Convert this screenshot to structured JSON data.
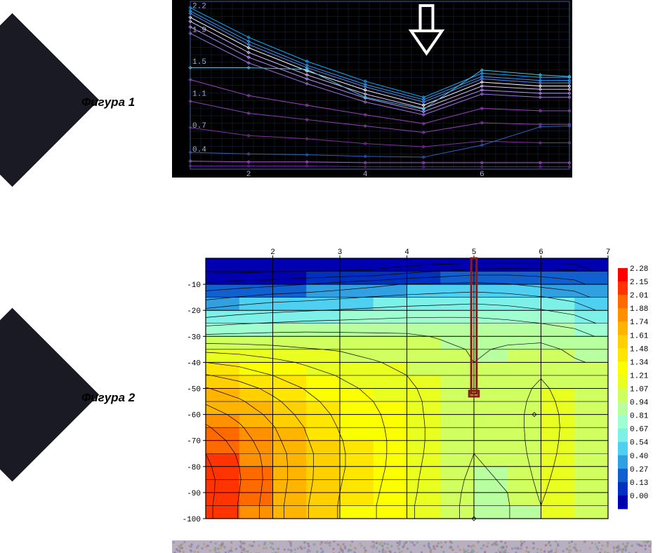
{
  "labels": {
    "fig1": "Фигура 1",
    "fig2": "Фигура 2"
  },
  "fig1": {
    "type": "line",
    "background": "#000000",
    "grid_color": "#1a2a4a",
    "axis_color": "#4060a0",
    "text_color": "#a0b0d0",
    "xlim": [
      1,
      7.5
    ],
    "ylim": [
      0.2,
      2.3
    ],
    "xticks": [
      2,
      4,
      6
    ],
    "yticks": [
      0.4,
      0.7,
      1.1,
      1.5,
      1.9,
      2.2
    ],
    "x_vals": [
      1,
      2,
      3,
      4,
      5,
      6,
      7,
      7.5
    ],
    "series": [
      {
        "color": "#00b0ff",
        "vals": [
          2.22,
          1.85,
          1.55,
          1.3,
          1.1,
          1.4,
          1.35,
          1.35
        ]
      },
      {
        "color": "#30a0ff",
        "vals": [
          2.18,
          1.8,
          1.5,
          1.26,
          1.07,
          1.36,
          1.31,
          1.31
        ]
      },
      {
        "color": "#5090ff",
        "vals": [
          2.15,
          1.76,
          1.47,
          1.23,
          1.04,
          1.33,
          1.28,
          1.28
        ]
      },
      {
        "color": "#ffffff",
        "vals": [
          2.1,
          1.72,
          1.43,
          1.19,
          1.0,
          1.29,
          1.24,
          1.24
        ]
      },
      {
        "color": "#e0c0ff",
        "vals": [
          2.05,
          1.66,
          1.38,
          1.14,
          0.96,
          1.24,
          1.2,
          1.2
        ]
      },
      {
        "color": "#c090ff",
        "vals": [
          1.98,
          1.6,
          1.33,
          1.09,
          0.92,
          1.19,
          1.15,
          1.15
        ]
      },
      {
        "color": "#a070e0",
        "vals": [
          1.9,
          1.53,
          1.27,
          1.04,
          0.88,
          1.14,
          1.1,
          1.1
        ]
      },
      {
        "color": "#50c0e0",
        "vals": [
          1.47,
          1.47,
          1.45,
          1.1,
          0.95,
          1.44,
          1.38,
          1.36
        ]
      },
      {
        "color": "#a040c0",
        "vals": [
          1.32,
          1.12,
          1.0,
          0.88,
          0.77,
          0.96,
          0.93,
          0.93
        ]
      },
      {
        "color": "#9040b0",
        "vals": [
          1.05,
          0.9,
          0.82,
          0.74,
          0.66,
          0.78,
          0.76,
          0.76
        ]
      },
      {
        "color": "#8030a0",
        "vals": [
          0.72,
          0.62,
          0.58,
          0.52,
          0.48,
          0.55,
          0.53,
          0.53
        ]
      },
      {
        "color": "#3060c0",
        "vals": [
          0.41,
          0.39,
          0.38,
          0.36,
          0.35,
          0.5,
          0.73,
          0.74
        ]
      },
      {
        "color": "#b050d0",
        "vals": [
          0.3,
          0.29,
          0.29,
          0.28,
          0.28,
          0.28,
          0.28,
          0.28
        ]
      },
      {
        "color": "#7020a0",
        "vals": [
          0.24,
          0.24,
          0.24,
          0.23,
          0.23,
          0.23,
          0.23,
          0.23
        ]
      }
    ],
    "arrow": {
      "x": 5.05,
      "color": "#ffffff"
    }
  },
  "fig2": {
    "type": "heatmap",
    "background": "#ffffff",
    "grid_color": "#000000",
    "text_color": "#000000",
    "xlim": [
      1,
      7
    ],
    "ylim": [
      -100,
      0
    ],
    "xticks": [
      2,
      3,
      4,
      5,
      6,
      7
    ],
    "yticks": [
      -10,
      -20,
      -30,
      -40,
      -50,
      -60,
      -70,
      -80,
      -90,
      -100
    ],
    "inner_hlines": [
      -5,
      -15,
      -25,
      -35,
      -45,
      -55,
      -65,
      -75,
      -85,
      -95
    ],
    "legend_title_hidden": true,
    "legend": [
      {
        "v": "2.28",
        "c": "#ff0000"
      },
      {
        "v": "2.15",
        "c": "#ff3400"
      },
      {
        "v": "2.01",
        "c": "#ff6a00"
      },
      {
        "v": "1.88",
        "c": "#ff9000"
      },
      {
        "v": "1.74",
        "c": "#ffb400"
      },
      {
        "v": "1.61",
        "c": "#ffd000"
      },
      {
        "v": "1.48",
        "c": "#ffe600"
      },
      {
        "v": "1.34",
        "c": "#fbff00"
      },
      {
        "v": "1.21",
        "c": "#e8ff20"
      },
      {
        "v": "1.07",
        "c": "#d0ff60"
      },
      {
        "v": "0.94",
        "c": "#b8ffa0"
      },
      {
        "v": "0.81",
        "c": "#a0ffd0"
      },
      {
        "v": "0.67",
        "c": "#7df0e8"
      },
      {
        "v": "0.54",
        "c": "#50d0f0"
      },
      {
        "v": "0.40",
        "c": "#30a0e0"
      },
      {
        "v": "0.27",
        "c": "#1060d0"
      },
      {
        "v": "0.13",
        "c": "#0030c0"
      },
      {
        "v": "0.00",
        "c": "#0000b0"
      }
    ],
    "cell_cols": [
      1,
      1.5,
      2,
      2.5,
      3,
      3.5,
      4,
      4.5,
      5,
      5.5,
      6,
      6.5,
      7
    ],
    "cell_rows": [
      0,
      -5,
      -10,
      -15,
      -20,
      -25,
      -30,
      -35,
      -40,
      -45,
      -50,
      -55,
      -60,
      -65,
      -70,
      -75,
      -80,
      -85,
      -90,
      -95,
      -100
    ],
    "cell_values": [
      [
        0.0,
        0.0,
        0.0,
        0.0,
        0.0,
        0.0,
        0.0,
        0.0,
        0.0,
        0.0,
        0.0,
        0.0
      ],
      [
        0.1,
        0.1,
        0.12,
        0.13,
        0.14,
        0.15,
        0.22,
        0.28,
        0.33,
        0.34,
        0.33,
        0.3
      ],
      [
        0.3,
        0.33,
        0.36,
        0.4,
        0.45,
        0.5,
        0.55,
        0.56,
        0.57,
        0.55,
        0.5,
        0.45
      ],
      [
        0.5,
        0.55,
        0.6,
        0.62,
        0.65,
        0.68,
        0.7,
        0.72,
        0.74,
        0.72,
        0.68,
        0.62
      ],
      [
        0.7,
        0.75,
        0.78,
        0.8,
        0.82,
        0.84,
        0.86,
        0.87,
        0.88,
        0.86,
        0.82,
        0.76
      ],
      [
        0.9,
        0.93,
        0.95,
        0.97,
        0.98,
        0.99,
        1.0,
        1.0,
        0.99,
        0.97,
        0.94,
        0.9
      ],
      [
        1.1,
        1.11,
        1.12,
        1.12,
        1.11,
        1.1,
        1.09,
        1.06,
        1.04,
        1.05,
        1.04,
        1.0
      ],
      [
        1.3,
        1.28,
        1.25,
        1.22,
        1.2,
        1.17,
        1.14,
        1.1,
        1.06,
        1.08,
        1.1,
        1.05
      ],
      [
        1.48,
        1.44,
        1.38,
        1.32,
        1.27,
        1.22,
        1.18,
        1.12,
        1.07,
        1.1,
        1.15,
        1.08
      ],
      [
        1.62,
        1.56,
        1.48,
        1.4,
        1.33,
        1.27,
        1.21,
        1.13,
        1.08,
        1.12,
        1.2,
        1.1
      ],
      [
        1.75,
        1.67,
        1.57,
        1.47,
        1.38,
        1.31,
        1.24,
        1.14,
        1.08,
        1.13,
        1.24,
        1.12
      ],
      [
        1.86,
        1.76,
        1.64,
        1.52,
        1.42,
        1.34,
        1.26,
        1.15,
        1.08,
        1.13,
        1.27,
        1.13
      ],
      [
        1.95,
        1.84,
        1.7,
        1.56,
        1.45,
        1.36,
        1.27,
        1.15,
        1.08,
        1.13,
        1.29,
        1.14
      ],
      [
        2.03,
        1.9,
        1.75,
        1.6,
        1.47,
        1.37,
        1.28,
        1.15,
        1.08,
        1.12,
        1.3,
        1.14
      ],
      [
        2.1,
        1.95,
        1.78,
        1.62,
        1.49,
        1.38,
        1.28,
        1.15,
        1.07,
        1.11,
        1.3,
        1.13
      ],
      [
        2.15,
        1.99,
        1.81,
        1.64,
        1.5,
        1.38,
        1.28,
        1.14,
        1.07,
        1.1,
        1.29,
        1.12
      ],
      [
        2.18,
        2.01,
        1.82,
        1.64,
        1.5,
        1.38,
        1.27,
        1.13,
        1.06,
        1.09,
        1.27,
        1.11
      ],
      [
        2.2,
        2.02,
        1.82,
        1.64,
        1.49,
        1.37,
        1.26,
        1.12,
        1.05,
        1.08,
        1.25,
        1.1
      ],
      [
        2.2,
        2.01,
        1.81,
        1.63,
        1.48,
        1.36,
        1.25,
        1.12,
        1.04,
        1.07,
        1.23,
        1.09
      ],
      [
        2.19,
        2.0,
        1.8,
        1.62,
        1.47,
        1.35,
        1.24,
        1.11,
        1.04,
        1.06,
        1.21,
        1.08
      ]
    ],
    "contour_levels": [
      0.13,
      0.27,
      0.4,
      0.54,
      0.67,
      0.81,
      0.94,
      1.07,
      1.21,
      1.34,
      1.48,
      1.61,
      1.74,
      1.88,
      2.01,
      2.15
    ],
    "marker_rect": {
      "x": 5.0,
      "y_top": 0,
      "y_bot": -52,
      "color": "#8b1a1a",
      "width": 0.08
    }
  },
  "noise_colors": [
    "#8a7ab0",
    "#b09a70",
    "#70a090",
    "#a07090",
    "#9088b0",
    "#b0a078",
    "#78a0a8",
    "#a88090",
    "#8c92ac",
    "#ac9a80"
  ]
}
